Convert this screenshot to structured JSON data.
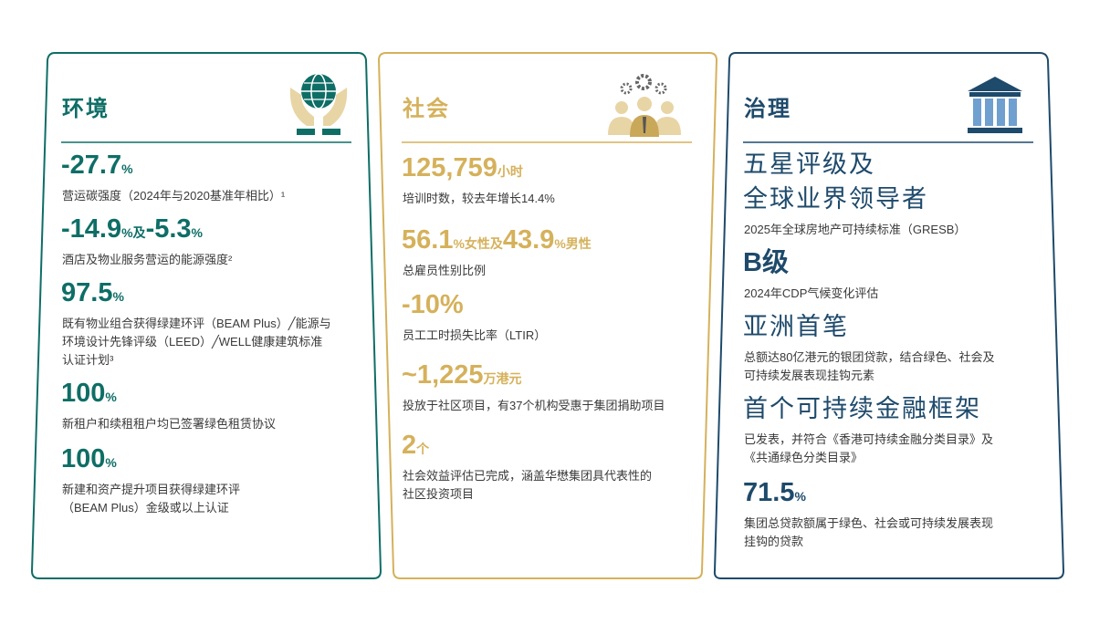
{
  "panels": [
    {
      "title": "环境",
      "items": [
        {
          "figure": [
            "-27.7",
            "%"
          ],
          "description": [
            "营运碳强度（2024年与2020基准年相比）¹"
          ]
        },
        {
          "figure": [
            "-14.9",
            "%及",
            "-5.3",
            "%"
          ],
          "description": [
            "酒店及物业服务营运的能源强度²"
          ]
        },
        {
          "figure": [
            "97.5",
            "%"
          ],
          "description": [
            "既有物业组合获得绿建环评（BEAM Plus）╱能源与",
            "环境设计先锋评级（LEED）╱WELL健康建筑标准",
            "认证计划³"
          ]
        },
        {
          "figure": [
            "100",
            "%"
          ],
          "description": [
            "新租户和续租租户均已签署绿色租赁协议"
          ]
        },
        {
          "figure": [
            "100",
            "%"
          ],
          "description": [
            "新建和资产提升项目获得绿建环评",
            "（BEAM Plus）金级或以上认证"
          ]
        }
      ]
    },
    {
      "title": "社会",
      "items": [
        {
          "figure": [
            "125,759",
            "小时"
          ],
          "description": [
            "培训时数，较去年增长14.4%"
          ]
        },
        {
          "figure": [
            "56.1",
            "%女性及",
            "43.9",
            "%男性"
          ],
          "description": [
            "总雇员性别比例"
          ]
        },
        {
          "figure": [
            "-10%"
          ],
          "description": [
            "员工工时损失比率（LTIR）"
          ]
        },
        {
          "figure": [
            "~1,225",
            "万港元"
          ],
          "description": [
            "投放于社区项目，有37个机构受惠于集团捐助项目"
          ]
        },
        {
          "figure": [
            "2",
            "个"
          ],
          "description": [
            "社会效益评估已完成，涵盖华懋集团具代表性的",
            "社区投资项目"
          ]
        }
      ]
    },
    {
      "title": "治理",
      "items": [
        {
          "headline": [
            "五星评级及",
            "全球业界领导者"
          ],
          "description": [
            "2025年全球房地产可持续标准（GRESB）"
          ]
        },
        {
          "figure": [
            "B级"
          ],
          "description": [
            "2024年CDP气候变化评估"
          ]
        },
        {
          "headline": [
            "亚洲首笔"
          ],
          "description": [
            "总额达80亿港元的银团贷款，结合绿色、社会及",
            "可持续发展表现挂钩元素"
          ]
        },
        {
          "headline": [
            "首个可持续金融框架"
          ],
          "description": [
            "已发表，并符合《香港可持续金融分类目录》及",
            "《共通绿色分类目录》"
          ]
        },
        {
          "figure": [
            "71.5",
            "%"
          ],
          "description": [
            "集团总贷款额属于绿色、社会或可持续发展表现",
            "挂钩的贷款"
          ]
        }
      ]
    }
  ]
}
